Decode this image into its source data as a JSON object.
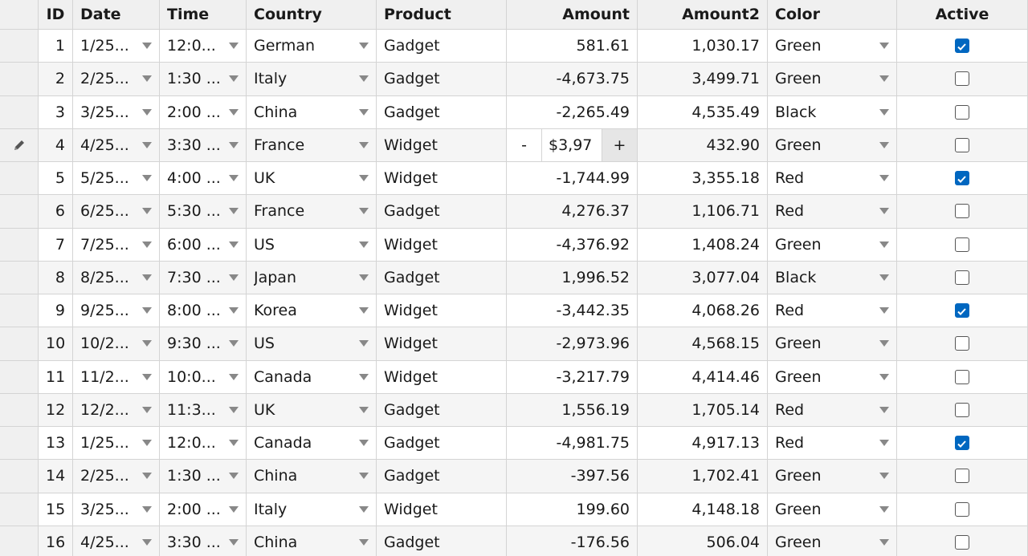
{
  "table": {
    "columns": [
      "ID",
      "Date",
      "Time",
      "Country",
      "Product",
      "Amount",
      "Amount2",
      "Color",
      "Active"
    ],
    "rows": [
      [
        "1",
        "1/25...",
        "12:0...",
        "German",
        "Gadget",
        "581.61",
        "1,030.17",
        "Green",
        true
      ],
      [
        "2",
        "2/25...",
        "1:30 ...",
        "Italy",
        "Gadget",
        "-4,673.75",
        "3,499.71",
        "Green",
        false
      ],
      [
        "3",
        "3/25...",
        "2:00 ...",
        "China",
        "Gadget",
        "-2,265.49",
        "4,535.49",
        "Black",
        false
      ],
      [
        "4",
        "4/25...",
        "3:30 ...",
        "France",
        "Widget",
        {
          "minus": "-",
          "value": "$3,97",
          "plus": "+"
        },
        "432.90",
        "Green",
        false
      ],
      [
        "5",
        "5/25...",
        "4:00 ...",
        "UK",
        "Widget",
        "-1,744.99",
        "3,355.18",
        "Red",
        true
      ],
      [
        "6",
        "6/25...",
        "5:30 ...",
        "France",
        "Gadget",
        "4,276.37",
        "1,106.71",
        "Red",
        false
      ],
      [
        "7",
        "7/25...",
        "6:00 ...",
        "US",
        "Widget",
        "-4,376.92",
        "1,408.24",
        "Green",
        false
      ],
      [
        "8",
        "8/25...",
        "7:30 ...",
        "Japan",
        "Gadget",
        "1,996.52",
        "3,077.04",
        "Black",
        false
      ],
      [
        "9",
        "9/25...",
        "8:00 ...",
        "Korea",
        "Widget",
        "-3,442.35",
        "4,068.26",
        "Red",
        true
      ],
      [
        "10",
        "10/2...",
        "9:30 ...",
        "US",
        "Widget",
        "-2,973.96",
        "4,568.15",
        "Green",
        false
      ],
      [
        "11",
        "11/2...",
        "10:0...",
        "Canada",
        "Widget",
        "-3,217.79",
        "4,414.46",
        "Green",
        false
      ],
      [
        "12",
        "12/2...",
        "11:3...",
        "UK",
        "Gadget",
        "1,556.19",
        "1,705.14",
        "Red",
        false
      ],
      [
        "13",
        "1/25...",
        "12:0...",
        "Canada",
        "Gadget",
        "-4,981.75",
        "4,917.13",
        "Red",
        true
      ],
      [
        "14",
        "2/25...",
        "1:30 ...",
        "China",
        "Gadget",
        "-397.56",
        "1,702.41",
        "Green",
        false
      ],
      [
        "15",
        "3/25...",
        "2:00 ...",
        "Italy",
        "Widget",
        "199.60",
        "4,148.18",
        "Green",
        false
      ],
      [
        "16",
        "4/25...",
        "3:30 ...",
        "China",
        "Gadget",
        "-176.56",
        "506.04",
        "Green",
        false
      ]
    ]
  }
}
